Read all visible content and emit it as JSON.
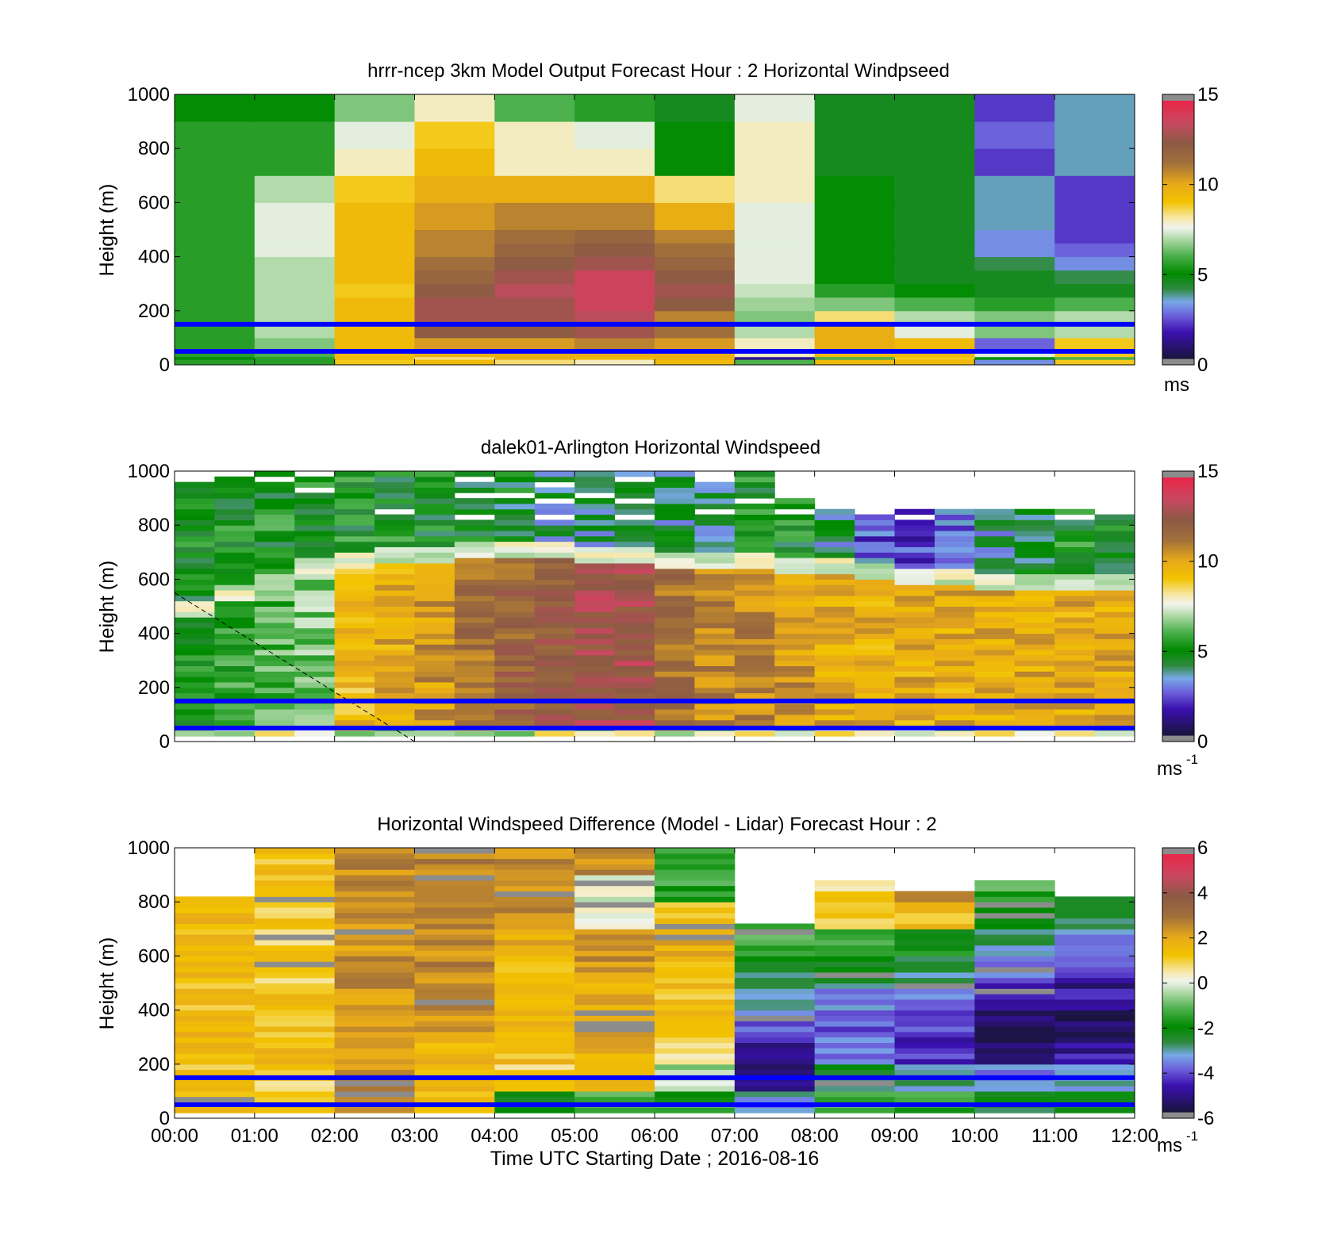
{
  "figure": {
    "xlabel": "Time UTC  Starting Date ; 2016-08-16",
    "x_tick_labels": [
      "00:00",
      "01:00",
      "02:00",
      "03:00",
      "04:00",
      "05:00",
      "06:00",
      "07:00",
      "08:00",
      "09:00",
      "10:00",
      "11:00",
      "12:00"
    ]
  },
  "chart_data": [
    {
      "type": "heatmap",
      "title": "hrrr-ncep 3km Model Output   Forecast Hour : 2 Horizontal Windpseed",
      "ylabel": "Height (m)",
      "ylim": [
        0,
        1000
      ],
      "y_ticks": [
        0,
        200,
        400,
        600,
        800,
        1000
      ],
      "xlim": [
        0,
        12
      ],
      "colorbar": {
        "min": 0,
        "max": 15,
        "ticks": [
          0,
          5,
          10,
          15
        ],
        "unit": "ms"
      },
      "reference_lines_m": [
        50,
        150
      ],
      "reference_line_color": "#0000ff",
      "x_edges": [
        0,
        1,
        2,
        3,
        4,
        5,
        6,
        7,
        8,
        9,
        10,
        11,
        12
      ],
      "y_edges": [
        0,
        20,
        30,
        50,
        100,
        150,
        200,
        250,
        300,
        350,
        400,
        450,
        500,
        600,
        700,
        800,
        900,
        1000
      ],
      "values": [
        [
          5.5,
          5.5,
          9.0,
          9.5,
          8.5,
          8.0,
          9.5,
          6.0,
          9.5,
          9.5,
          3.0,
          9.0
        ],
        [
          5.0,
          5.5,
          9.5,
          8.5,
          10.0,
          9.5,
          10.0,
          1.0,
          6.0,
          9.0,
          5.0,
          6.0
        ],
        [
          5.5,
          6.0,
          9.5,
          10.0,
          10.0,
          10.0,
          10.0,
          8.0,
          9.5,
          9.5,
          7.5,
          9.0
        ],
        [
          5.5,
          6.5,
          9.5,
          10.5,
          10.5,
          11.0,
          10.5,
          8.0,
          10.0,
          9.5,
          2.5,
          9.0
        ],
        [
          5.5,
          7.0,
          9.5,
          12.5,
          12.5,
          13.0,
          11.5,
          7.0,
          10.0,
          7.5,
          6.5,
          7.0
        ],
        [
          5.5,
          7.0,
          9.5,
          13.0,
          13.0,
          13.5,
          11.0,
          6.5,
          8.5,
          7.0,
          6.5,
          7.0
        ],
        [
          5.5,
          7.0,
          9.5,
          13.0,
          13.0,
          14.0,
          12.5,
          6.8,
          6.5,
          6.0,
          5.5,
          6.0
        ],
        [
          5.5,
          7.0,
          9.0,
          12.5,
          13.5,
          14.0,
          13.0,
          7.2,
          5.5,
          5.0,
          4.5,
          4.5
        ],
        [
          5.5,
          7.0,
          9.5,
          12.0,
          13.0,
          14.0,
          12.5,
          7.5,
          5.0,
          4.5,
          4.5,
          4.0
        ],
        [
          5.5,
          7.0,
          9.5,
          11.5,
          12.5,
          13.0,
          12.0,
          7.5,
          5.0,
          4.5,
          4.0,
          3.0
        ],
        [
          5.5,
          7.5,
          9.5,
          11.0,
          12.0,
          12.5,
          11.5,
          7.5,
          5.0,
          4.5,
          3.0,
          2.5
        ],
        [
          5.5,
          7.5,
          9.5,
          11.0,
          11.5,
          12.0,
          11.0,
          7.5,
          5.0,
          4.5,
          3.0,
          2.0
        ],
        [
          5.5,
          7.5,
          9.5,
          10.5,
          11.0,
          11.0,
          10.0,
          7.5,
          5.0,
          4.5,
          3.5,
          2.0
        ],
        [
          5.5,
          7.0,
          9.0,
          10.0,
          10.0,
          10.0,
          8.5,
          8.0,
          5.0,
          4.5,
          3.5,
          2.0
        ],
        [
          5.5,
          5.5,
          8.0,
          9.5,
          8.0,
          8.0,
          5.0,
          8.0,
          4.5,
          4.5,
          2.0,
          3.5
        ],
        [
          5.5,
          5.5,
          7.5,
          9.0,
          8.0,
          7.5,
          5.0,
          8.0,
          4.5,
          4.5,
          2.5,
          3.5
        ],
        [
          5.0,
          5.0,
          6.5,
          8.0,
          6.0,
          5.5,
          4.5,
          7.5,
          4.5,
          4.5,
          2.0,
          3.5
        ]
      ]
    },
    {
      "type": "heatmap",
      "title": "dalek01-Arlington  Horizontal Windspeed",
      "ylabel": "Height (m)",
      "ylim": [
        0,
        1000
      ],
      "y_ticks": [
        0,
        200,
        400,
        600,
        800,
        1000
      ],
      "xlim": [
        0,
        12
      ],
      "colorbar": {
        "min": 0,
        "max": 15,
        "ticks": [
          0,
          5,
          10,
          15
        ],
        "unit": "ms",
        "unit_exponent": "-1"
      },
      "reference_lines_m": [
        50,
        150
      ],
      "reference_line_color": "#0000ff",
      "time_h": [
        0.25,
        0.75,
        1.25,
        1.75,
        2.25,
        2.75,
        3.25,
        3.75,
        4.25,
        4.75,
        5.25,
        5.75,
        6.25,
        6.75,
        7.25,
        7.75,
        8.25,
        8.75,
        9.25,
        9.75,
        10.25,
        10.75,
        11.25,
        11.75
      ],
      "low_ws": [
        5.0,
        5.5,
        6.0,
        6.5,
        9.5,
        10.0,
        10.5,
        11.5,
        12.0,
        12.5,
        13.0,
        13.0,
        11.5,
        11.0,
        11.0,
        10.5,
        10.0,
        10.0,
        10.0,
        10.0,
        10.0,
        10.0,
        10.0,
        10.0
      ],
      "low_top_m": [
        450,
        500,
        550,
        600,
        620,
        640,
        650,
        660,
        660,
        660,
        650,
        640,
        630,
        620,
        620,
        610,
        600,
        580,
        560,
        560,
        550,
        550,
        550,
        550
      ],
      "upper_ws": [
        5.0,
        5.0,
        5.0,
        5.0,
        5.0,
        5.0,
        5.0,
        4.5,
        4.5,
        4.0,
        4.0,
        4.0,
        4.0,
        4.0,
        5.0,
        5.0,
        4.0,
        2.5,
        2.0,
        3.0,
        3.5,
        4.5,
        5.0,
        5.0
      ],
      "data_top_m": [
        950,
        970,
        990,
        1000,
        1000,
        1000,
        1000,
        1000,
        1000,
        1000,
        1000,
        1000,
        1000,
        1000,
        1000,
        900,
        850,
        850,
        850,
        850,
        850,
        850,
        850,
        850
      ],
      "dashed_line": {
        "x": [
          0,
          3
        ],
        "y_m": [
          550,
          0
        ]
      }
    },
    {
      "type": "heatmap",
      "title": "Horizontal Windspeed Difference (Model - Lidar) Forecast Hour : 2",
      "ylabel": "Height (m)",
      "xlabel": "Time UTC  Starting Date ; 2016-08-16",
      "ylim": [
        0,
        1000
      ],
      "y_ticks": [
        0,
        200,
        400,
        600,
        800,
        1000
      ],
      "xlim": [
        0,
        12
      ],
      "colorbar": {
        "min": -6,
        "max": 6,
        "ticks": [
          -6,
          -4,
          -2,
          0,
          2,
          4,
          6
        ],
        "unit": "ms",
        "unit_exponent": "-1"
      },
      "reference_lines_m": [
        50,
        150
      ],
      "reference_line_color": "#0000ff",
      "x_edges": [
        0,
        1,
        2,
        3,
        4,
        5,
        6,
        7,
        8,
        9,
        10,
        11,
        12
      ],
      "col_top_m": [
        810,
        1000,
        1000,
        1000,
        1000,
        1000,
        1000,
        720,
        870,
        840,
        880,
        810
      ],
      "y_edges": [
        0,
        100,
        200,
        300,
        400,
        500,
        600,
        700,
        800,
        900,
        1000
      ],
      "values": [
        [
          1.5,
          1.5,
          2.5,
          1.5,
          -2.0,
          -1.5,
          -1.5,
          -3.5,
          -1.5,
          -1.5,
          -2.5,
          -2.0
        ],
        [
          1.5,
          1.0,
          2.5,
          1.5,
          1.0,
          1.5,
          -0.5,
          -5.5,
          -2.5,
          -3.0,
          -3.5,
          -3.5
        ],
        [
          1.5,
          1.5,
          2.5,
          1.8,
          1.5,
          1.8,
          1.0,
          -5.0,
          -4.0,
          -4.5,
          -5.5,
          -5.0
        ],
        [
          1.8,
          1.5,
          2.6,
          2.5,
          1.5,
          2.0,
          1.5,
          -4.0,
          -4.0,
          -4.5,
          -5.5,
          -5.5
        ],
        [
          1.5,
          1.5,
          2.5,
          3.0,
          1.5,
          2.0,
          1.5,
          -3.0,
          -3.5,
          -3.5,
          -5.0,
          -5.0
        ],
        [
          1.5,
          1.2,
          2.5,
          2.8,
          1.5,
          2.5,
          1.5,
          -2.5,
          -2.5,
          -3.0,
          -4.0,
          -4.5
        ],
        [
          1.5,
          1.2,
          2.5,
          2.5,
          2.0,
          2.5,
          2.0,
          -1.5,
          -1.5,
          -2.0,
          -3.0,
          -3.5
        ],
        [
          1.8,
          1.2,
          2.6,
          2.5,
          2.5,
          0.0,
          1.5,
          -1.0,
          1.0,
          1.5,
          -2.0,
          -3.0
        ],
        [
          1.8,
          1.5,
          2.8,
          2.8,
          2.6,
          0.0,
          -1.5,
          0.0,
          1.0,
          2.5,
          -1.5,
          -3.0
        ],
        [
          1.5,
          1.5,
          2.7,
          2.8,
          2.8,
          2.5,
          -1.5,
          0.0,
          0.0,
          0.0,
          0.0,
          0.0
        ]
      ]
    }
  ]
}
